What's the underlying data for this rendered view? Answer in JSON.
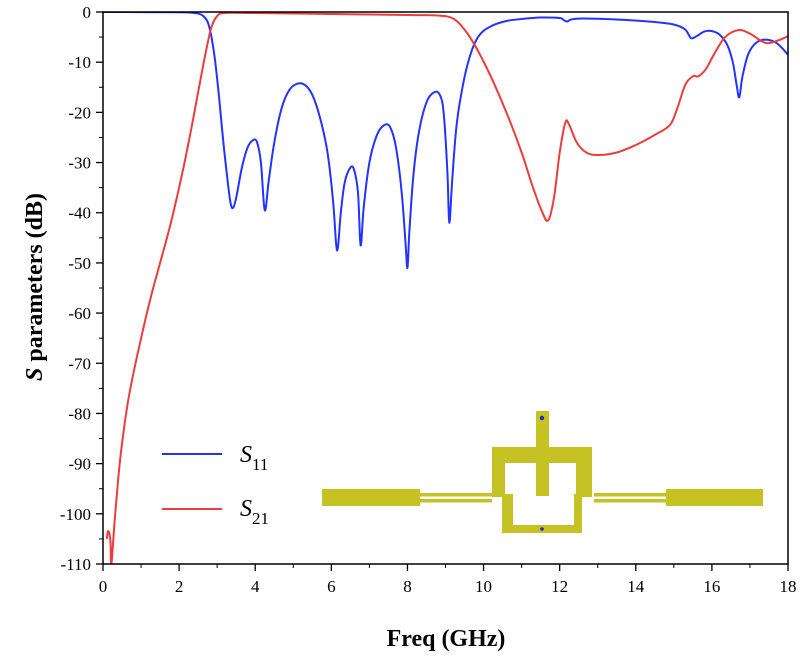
{
  "chart_data": {
    "type": "line",
    "xlabel": "Freq (GHz)",
    "ylabel_italic": "S",
    "ylabel_rest": " parameters (dB)",
    "xlim": [
      0,
      18
    ],
    "ylim": [
      -110,
      0
    ],
    "xticks": [
      0,
      2,
      4,
      6,
      8,
      10,
      12,
      14,
      16,
      18
    ],
    "yticks": [
      0,
      -10,
      -20,
      -30,
      -40,
      -50,
      -60,
      -70,
      -80,
      -90,
      -100,
      -110
    ],
    "xtick_labels": [
      "0",
      "2",
      "4",
      "6",
      "8",
      "10",
      "12",
      "14",
      "16",
      "18"
    ],
    "ytick_labels": [
      "0",
      "-10",
      "-20",
      "-30",
      "-40",
      "-50",
      "-60",
      "-70",
      "-80",
      "-90",
      "-100",
      "-110"
    ],
    "grid": false,
    "legend_position": "bottom-left",
    "series": [
      {
        "name": "S11",
        "legend_main": "S",
        "legend_sub": "11",
        "color": "#2233ff",
        "points": [
          [
            0,
            0
          ],
          [
            2.0,
            -0.05
          ],
          [
            2.4,
            -0.2
          ],
          [
            2.6,
            -0.6
          ],
          [
            2.75,
            -2
          ],
          [
            2.85,
            -5
          ],
          [
            2.95,
            -10
          ],
          [
            3.05,
            -17
          ],
          [
            3.15,
            -25
          ],
          [
            3.25,
            -32
          ],
          [
            3.35,
            -38
          ],
          [
            3.42,
            -39
          ],
          [
            3.5,
            -37
          ],
          [
            3.65,
            -31
          ],
          [
            3.8,
            -27
          ],
          [
            3.95,
            -25.5
          ],
          [
            4.05,
            -26
          ],
          [
            4.15,
            -30
          ],
          [
            4.25,
            -39.5
          ],
          [
            4.35,
            -34
          ],
          [
            4.5,
            -26
          ],
          [
            4.7,
            -19
          ],
          [
            4.9,
            -15.5
          ],
          [
            5.1,
            -14.3
          ],
          [
            5.3,
            -14.5
          ],
          [
            5.5,
            -16.5
          ],
          [
            5.7,
            -21
          ],
          [
            5.9,
            -28
          ],
          [
            6.05,
            -38
          ],
          [
            6.15,
            -47.5
          ],
          [
            6.25,
            -40
          ],
          [
            6.35,
            -34
          ],
          [
            6.5,
            -31
          ],
          [
            6.6,
            -31.5
          ],
          [
            6.7,
            -36
          ],
          [
            6.77,
            -46.5
          ],
          [
            6.85,
            -39
          ],
          [
            7.0,
            -30
          ],
          [
            7.2,
            -24.5
          ],
          [
            7.4,
            -22.5
          ],
          [
            7.55,
            -23
          ],
          [
            7.7,
            -27
          ],
          [
            7.85,
            -36
          ],
          [
            7.95,
            -46
          ],
          [
            8.0,
            -51
          ],
          [
            8.05,
            -44
          ],
          [
            8.15,
            -33
          ],
          [
            8.3,
            -24
          ],
          [
            8.5,
            -18
          ],
          [
            8.7,
            -16
          ],
          [
            8.85,
            -16.5
          ],
          [
            8.95,
            -20
          ],
          [
            9.05,
            -32
          ],
          [
            9.1,
            -42
          ],
          [
            9.18,
            -33
          ],
          [
            9.3,
            -22
          ],
          [
            9.5,
            -13
          ],
          [
            9.7,
            -7.5
          ],
          [
            9.9,
            -4.5
          ],
          [
            10.2,
            -2.8
          ],
          [
            10.6,
            -1.8
          ],
          [
            11.0,
            -1.4
          ],
          [
            11.5,
            -1.1
          ],
          [
            12.0,
            -1.2
          ],
          [
            12.1,
            -1.6
          ],
          [
            12.2,
            -1.9
          ],
          [
            12.3,
            -1.5
          ],
          [
            12.6,
            -1.3
          ],
          [
            13.5,
            -1.5
          ],
          [
            14.5,
            -2.0
          ],
          [
            15.0,
            -2.5
          ],
          [
            15.3,
            -3.5
          ],
          [
            15.45,
            -5.2
          ],
          [
            15.6,
            -4.8
          ],
          [
            15.8,
            -3.9
          ],
          [
            16.0,
            -3.8
          ],
          [
            16.2,
            -4.5
          ],
          [
            16.4,
            -6.5
          ],
          [
            16.55,
            -10
          ],
          [
            16.65,
            -14.5
          ],
          [
            16.72,
            -17
          ],
          [
            16.8,
            -13
          ],
          [
            16.95,
            -8.5
          ],
          [
            17.15,
            -6.2
          ],
          [
            17.4,
            -5.5
          ],
          [
            17.7,
            -6.2
          ],
          [
            18.0,
            -8.5
          ]
        ]
      },
      {
        "name": "S21",
        "legend_main": "S",
        "legend_sub": "21",
        "color": "#ee3b3b",
        "points": [
          [
            0.1,
            -105
          ],
          [
            0.13,
            -103.5
          ],
          [
            0.17,
            -104
          ],
          [
            0.2,
            -106
          ],
          [
            0.22,
            -110
          ],
          [
            0.3,
            -102
          ],
          [
            0.4,
            -93
          ],
          [
            0.5,
            -86
          ],
          [
            0.65,
            -78
          ],
          [
            0.8,
            -72
          ],
          [
            1.0,
            -65
          ],
          [
            1.25,
            -57
          ],
          [
            1.5,
            -50
          ],
          [
            1.75,
            -43
          ],
          [
            2.0,
            -35
          ],
          [
            2.25,
            -26
          ],
          [
            2.5,
            -16
          ],
          [
            2.7,
            -8
          ],
          [
            2.85,
            -3
          ],
          [
            3.0,
            -0.8
          ],
          [
            3.2,
            -0.2
          ],
          [
            4.0,
            -0.2
          ],
          [
            6.0,
            -0.4
          ],
          [
            8.0,
            -0.6
          ],
          [
            8.8,
            -0.7
          ],
          [
            9.2,
            -1.3
          ],
          [
            9.5,
            -3.5
          ],
          [
            9.8,
            -7
          ],
          [
            10.2,
            -13
          ],
          [
            10.6,
            -20
          ],
          [
            11.0,
            -28
          ],
          [
            11.3,
            -35
          ],
          [
            11.55,
            -40
          ],
          [
            11.7,
            -41.5
          ],
          [
            11.85,
            -37
          ],
          [
            12.0,
            -28
          ],
          [
            12.15,
            -22
          ],
          [
            12.25,
            -22.5
          ],
          [
            12.45,
            -26
          ],
          [
            12.7,
            -28
          ],
          [
            13.0,
            -28.5
          ],
          [
            13.5,
            -28
          ],
          [
            14.0,
            -26.5
          ],
          [
            14.5,
            -24.5
          ],
          [
            14.9,
            -22.5
          ],
          [
            15.1,
            -19
          ],
          [
            15.3,
            -14.5
          ],
          [
            15.5,
            -12.8
          ],
          [
            15.65,
            -12.8
          ],
          [
            15.85,
            -11.3
          ],
          [
            16.05,
            -8.5
          ],
          [
            16.35,
            -5
          ],
          [
            16.7,
            -3.6
          ],
          [
            17.0,
            -4.3
          ],
          [
            17.3,
            -5.8
          ],
          [
            17.5,
            -6.2
          ],
          [
            17.8,
            -5.5
          ],
          [
            18.0,
            -4.8
          ]
        ]
      }
    ]
  },
  "inset": {
    "name": "filter-layout",
    "fill_color": "#c7c224"
  }
}
